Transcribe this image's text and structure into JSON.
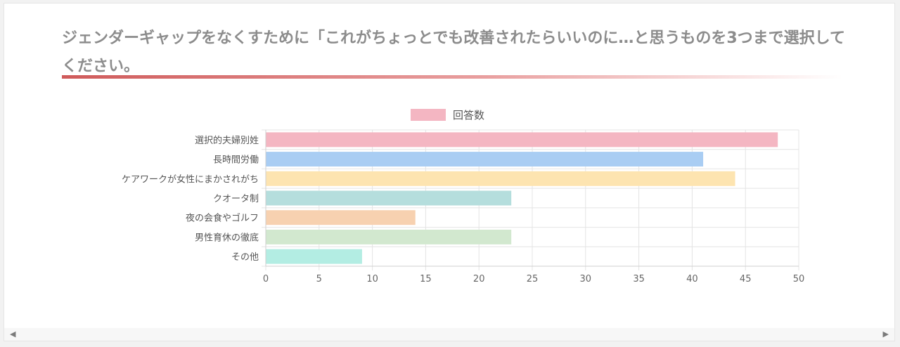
{
  "title": "ジェンダーギャップをなくすために「これがちょっとでも改善されたらいいのに…と思うものを3つまで選択してください。",
  "chart_data": {
    "type": "bar",
    "orientation": "horizontal",
    "categories": [
      "選択的夫婦別姓",
      "長時間労働",
      "ケアワークが女性にまかされがち",
      "クオータ制",
      "夜の会食やゴルフ",
      "男性育休の徹底",
      "その他"
    ],
    "series": [
      {
        "name": "回答数",
        "values": [
          48,
          41,
          44,
          23,
          14,
          23,
          9
        ],
        "colors": [
          "#f4b6c2",
          "#a9cdf3",
          "#fde4b0",
          "#b5dedd",
          "#f7d1b0",
          "#d2e8cf",
          "#b3ede3"
        ],
        "legend_color": "#f4b6c2"
      }
    ],
    "x_ticks": [
      "0",
      "5",
      "10",
      "15",
      "20",
      "25",
      "30",
      "35",
      "40",
      "45",
      "50"
    ],
    "xlim": [
      0,
      50
    ],
    "grid": true,
    "legend_position": "top"
  },
  "scrollbar": {
    "left_icon": "chevron-left-icon",
    "right_icon": "chevron-right-icon",
    "left_glyph": "◀",
    "right_glyph": "▶"
  }
}
